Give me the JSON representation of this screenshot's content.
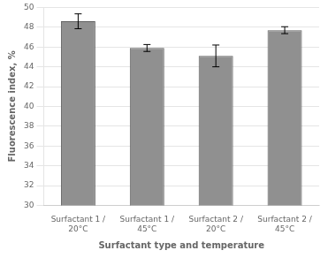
{
  "chart_data": {
    "type": "bar",
    "categories": [
      "Surfactant 1 /\n20°C",
      "Surfactant 1 /\n45°C",
      "Surfactant 2 /\n20°C",
      "Surfactant 2 /\n45°C"
    ],
    "values": [
      48.6,
      45.9,
      45.1,
      47.7
    ],
    "errors": [
      0.75,
      0.35,
      1.1,
      0.35
    ],
    "color": "#909090",
    "ylabel": "Fluorescence index, %",
    "xlabel": "Surfactant type and temperature",
    "ylim": [
      30,
      50
    ],
    "yticks": [
      30,
      32,
      34,
      36,
      38,
      40,
      42,
      44,
      46,
      48,
      50
    ],
    "grid": true
  }
}
